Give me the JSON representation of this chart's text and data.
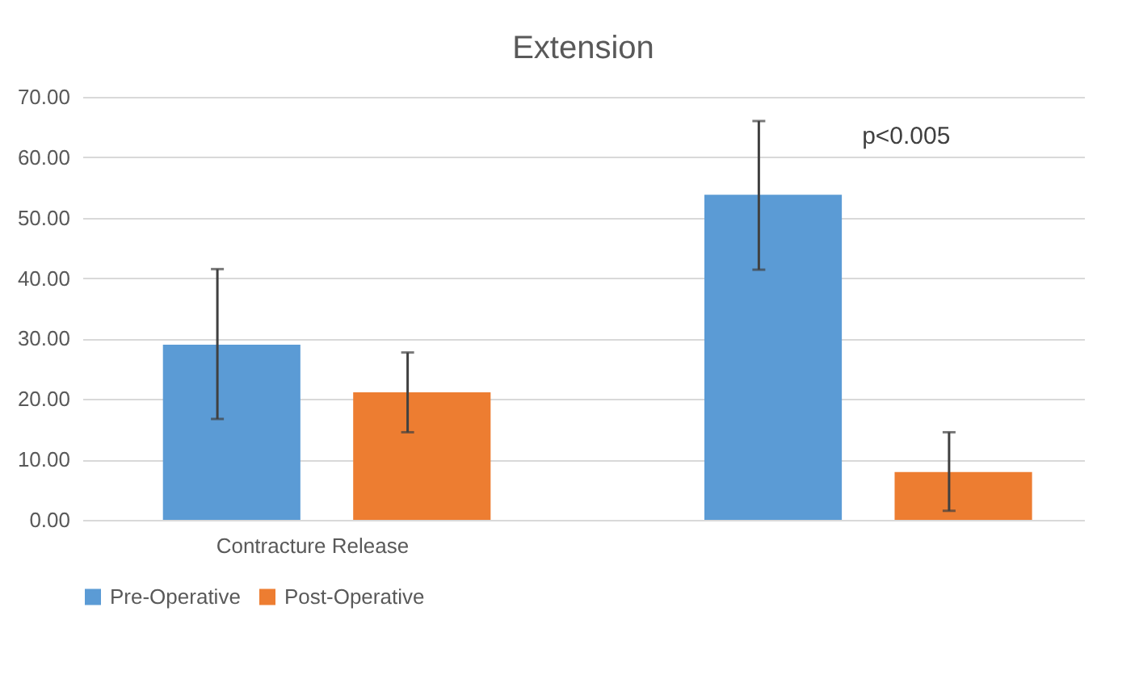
{
  "chart_data": {
    "type": "bar",
    "title": "Extension",
    "categories": [
      "Contracture Release",
      null
    ],
    "series": [
      {
        "name": "Pre-Operative",
        "color": "#5b9bd5",
        "values": [
          29.0,
          53.8
        ],
        "errors": [
          [
            16.7,
            41.5
          ],
          [
            41.4,
            66.0
          ]
        ]
      },
      {
        "name": "Post-Operative",
        "color": "#ed7d31",
        "values": [
          21.1,
          7.9
        ],
        "errors": [
          [
            14.5,
            27.7
          ],
          [
            1.5,
            14.5
          ]
        ]
      }
    ],
    "ylim": [
      0,
      70
    ],
    "yticks": [
      {
        "value": 0,
        "label": "0.00"
      },
      {
        "value": 10,
        "label": "10.00"
      },
      {
        "value": 20,
        "label": "20.00"
      },
      {
        "value": 30,
        "label": "30.00"
      },
      {
        "value": 40,
        "label": "40.00"
      },
      {
        "value": 50,
        "label": "50.00"
      },
      {
        "value": 60,
        "label": "60.00"
      },
      {
        "value": 70,
        "label": "70.00"
      }
    ],
    "grid": "y",
    "legend": "bottom",
    "annotations": [
      "p<0.005"
    ]
  }
}
